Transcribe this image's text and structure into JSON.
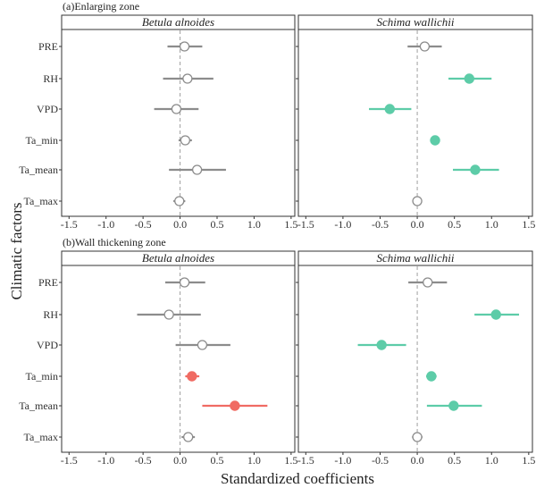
{
  "figure": {
    "y_label": "Climatic factors",
    "x_label": "Standardized coefficients"
  },
  "colors": {
    "ns": "#8c8c8c",
    "positive_sig": "#5dcca8",
    "negative_sig": "#f06b63",
    "frame": "#333333",
    "strip_bg": "#ffffff",
    "zero_line": "#a0a0a0"
  },
  "chart_data": [
    {
      "type": "scatter",
      "panel_title": "(a)Enlarging zone",
      "facets": [
        {
          "name": "Betula alnoides",
          "points": [
            {
              "factor": "PRE",
              "estimate": 0.06,
              "ci": [
                -0.17,
                0.3
              ],
              "significant": false
            },
            {
              "factor": "RH",
              "estimate": 0.1,
              "ci": [
                -0.23,
                0.45
              ],
              "significant": false
            },
            {
              "factor": "VPD",
              "estimate": -0.05,
              "ci": [
                -0.35,
                0.25
              ],
              "significant": false
            },
            {
              "factor": "Ta_min",
              "estimate": 0.07,
              "ci": [
                -0.02,
                0.16
              ],
              "significant": false
            },
            {
              "factor": "Ta_mean",
              "estimate": 0.23,
              "ci": [
                -0.15,
                0.62
              ],
              "significant": false
            },
            {
              "factor": "Ta_max",
              "estimate": -0.01,
              "ci": [
                -0.09,
                0.07
              ],
              "significant": false
            }
          ]
        },
        {
          "name": "Schima wallichii",
          "points": [
            {
              "factor": "PRE",
              "estimate": 0.1,
              "ci": [
                -0.13,
                0.33
              ],
              "significant": false
            },
            {
              "factor": "RH",
              "estimate": 0.7,
              "ci": [
                0.42,
                1.0
              ],
              "significant": true,
              "direction": "positive"
            },
            {
              "factor": "VPD",
              "estimate": -0.37,
              "ci": [
                -0.65,
                -0.08
              ],
              "significant": true,
              "direction": "positive"
            },
            {
              "factor": "Ta_min",
              "estimate": 0.24,
              "ci": [
                0.2,
                0.28
              ],
              "significant": true,
              "direction": "positive"
            },
            {
              "factor": "Ta_mean",
              "estimate": 0.78,
              "ci": [
                0.48,
                1.1
              ],
              "significant": true,
              "direction": "positive"
            },
            {
              "factor": "Ta_max",
              "estimate": 0.0,
              "ci": [
                -0.06,
                0.06
              ],
              "significant": false
            }
          ]
        }
      ],
      "categories": [
        "PRE",
        "RH",
        "VPD",
        "Ta_min",
        "Ta_mean",
        "Ta_max"
      ],
      "xlim": [
        -1.6,
        1.55
      ],
      "xticks": [
        "-1.5",
        "-1.0",
        "-0.5",
        "0.0",
        "0.5",
        "1.0",
        "1.5"
      ],
      "zero_line": true,
      "grid": false
    },
    {
      "type": "scatter",
      "panel_title": "(b)Wall thickening zone",
      "facets": [
        {
          "name": "Betula alnoides",
          "points": [
            {
              "factor": "PRE",
              "estimate": 0.06,
              "ci": [
                -0.2,
                0.34
              ],
              "significant": false
            },
            {
              "factor": "RH",
              "estimate": -0.15,
              "ci": [
                -0.58,
                0.28
              ],
              "significant": false
            },
            {
              "factor": "VPD",
              "estimate": 0.3,
              "ci": [
                -0.06,
                0.68
              ],
              "significant": false
            },
            {
              "factor": "Ta_min",
              "estimate": 0.16,
              "ci": [
                0.07,
                0.26
              ],
              "significant": true,
              "direction": "negative"
            },
            {
              "factor": "Ta_mean",
              "estimate": 0.74,
              "ci": [
                0.3,
                1.18
              ],
              "significant": true,
              "direction": "negative"
            },
            {
              "factor": "Ta_max",
              "estimate": 0.11,
              "ci": [
                0.02,
                0.2
              ],
              "significant": false
            }
          ]
        },
        {
          "name": "Schima wallichii",
          "points": [
            {
              "factor": "PRE",
              "estimate": 0.14,
              "ci": [
                -0.12,
                0.4
              ],
              "significant": false
            },
            {
              "factor": "RH",
              "estimate": 1.06,
              "ci": [
                0.77,
                1.37
              ],
              "significant": true,
              "direction": "positive"
            },
            {
              "factor": "VPD",
              "estimate": -0.48,
              "ci": [
                -0.8,
                -0.15
              ],
              "significant": true,
              "direction": "positive"
            },
            {
              "factor": "Ta_min",
              "estimate": 0.19,
              "ci": [
                0.12,
                0.26
              ],
              "significant": true,
              "direction": "positive"
            },
            {
              "factor": "Ta_mean",
              "estimate": 0.49,
              "ci": [
                0.13,
                0.87
              ],
              "significant": true,
              "direction": "positive"
            },
            {
              "factor": "Ta_max",
              "estimate": 0.0,
              "ci": [
                -0.07,
                0.07
              ],
              "significant": false
            }
          ]
        }
      ],
      "categories": [
        "PRE",
        "RH",
        "VPD",
        "Ta_min",
        "Ta_mean",
        "Ta_max"
      ],
      "xlim": [
        -1.6,
        1.55
      ],
      "xticks": [
        "-1.5",
        "-1.0",
        "-0.5",
        "0.0",
        "0.5",
        "1.0",
        "1.5"
      ],
      "zero_line": true,
      "grid": false
    }
  ]
}
